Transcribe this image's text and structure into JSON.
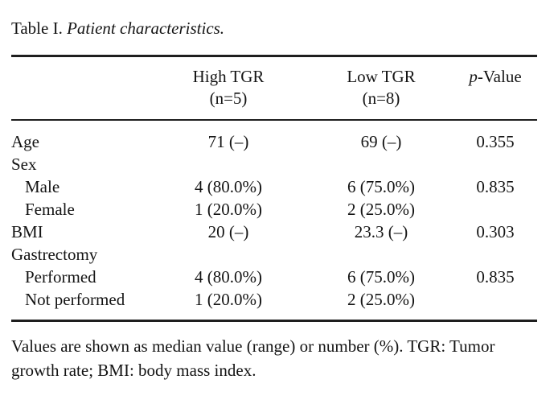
{
  "title": {
    "prefix": "Table I. ",
    "italic": "Patient characteristics."
  },
  "header": {
    "high_tgr": {
      "line1": "High TGR",
      "line2": "(n=5)"
    },
    "low_tgr": {
      "line1": "Low TGR",
      "line2": "(n=8)"
    },
    "p_value": {
      "italic": "p",
      "rest": "-Value"
    }
  },
  "rows": [
    {
      "label": "Age",
      "high": "71 (–)",
      "low": "69 (–)",
      "p": "0.355"
    },
    {
      "label": "Sex",
      "high": "",
      "low": "",
      "p": ""
    },
    {
      "label": "Male",
      "high": "4 (80.0%)",
      "low": "6 (75.0%)",
      "p": "0.835"
    },
    {
      "label": "Female",
      "high": "1 (20.0%)",
      "low": "2 (25.0%)",
      "p": ""
    },
    {
      "label": "BMI",
      "high": "20 (–)",
      "low": "23.3 (–)",
      "p": "0.303"
    },
    {
      "label": "Gastrectomy",
      "high": "",
      "low": "",
      "p": ""
    },
    {
      "label": "Performed",
      "high": "4 (80.0%)",
      "low": "6 (75.0%)",
      "p": "0.835"
    },
    {
      "label": "Not performed",
      "high": "1 (20.0%)",
      "low": "2 (25.0%)",
      "p": ""
    }
  ],
  "footnote": "Values are shown as median value (range) or number (%). TGR: Tumor growth rate; BMI: body mass index.",
  "colors": {
    "text": "#141414",
    "rule": "#1e1e1e",
    "background": "#ffffff"
  }
}
